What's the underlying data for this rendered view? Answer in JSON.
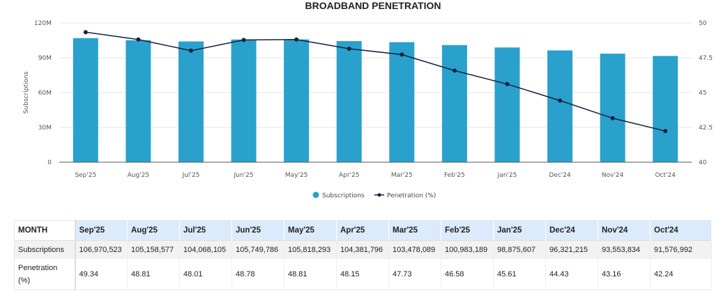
{
  "chart_data": {
    "type": "bar+line",
    "title": "BROADBAND PENETRATION",
    "categories": [
      "Sep'25",
      "Aug'25",
      "Jul'25",
      "Jun'25",
      "May'25",
      "Apr'25",
      "Mar'25",
      "Feb'25",
      "Jan'25",
      "Dec'24",
      "Nov'24",
      "Oct'24"
    ],
    "series": [
      {
        "name": "Subscriptions",
        "type": "bar",
        "axis": "left",
        "color": "#2aa1cc",
        "values": [
          106970523,
          105158577,
          104068105,
          105749786,
          105818293,
          104381796,
          103478089,
          100983189,
          98875607,
          96321215,
          93553834,
          91576992
        ]
      },
      {
        "name": "Penetration (%)",
        "type": "line",
        "axis": "right",
        "color": "#14213d",
        "values": [
          49.34,
          48.81,
          48.01,
          48.78,
          48.81,
          48.15,
          47.73,
          46.58,
          45.61,
          44.43,
          43.16,
          42.24
        ]
      }
    ],
    "ylabel": "Subscriptions",
    "ylim": [
      0,
      120000000
    ],
    "yticks": [
      "0",
      "30M",
      "60M",
      "90M",
      "120M"
    ],
    "y2lim": [
      40,
      50
    ],
    "y2ticks": [
      "40",
      "42.5",
      "45",
      "47.5",
      "50"
    ],
    "grid": true,
    "legend": "bottom"
  },
  "table": {
    "header_label": "MONTH",
    "row_labels": [
      "Subscriptions",
      "Penetration (%)"
    ],
    "months": [
      "Sep'25",
      "Aug'25",
      "Jul'25",
      "Jun'25",
      "May'25",
      "Apr'25",
      "Mar'25",
      "Feb'25",
      "Jan'25",
      "Dec'24",
      "Nov'24",
      "Oct'24"
    ],
    "subscriptions": [
      "106,970,523",
      "105,158,577",
      "104,068,105",
      "105,749,786",
      "105,818,293",
      "104,381,796",
      "103,478,089",
      "100,983,189",
      "98,875,607",
      "96,321,215",
      "93,553,834",
      "91,576,992"
    ],
    "penetration": [
      "49.34",
      "48.81",
      "48.01",
      "48.78",
      "48.81",
      "48.15",
      "47.73",
      "46.58",
      "45.61",
      "44.43",
      "43.16",
      "42.24"
    ]
  }
}
